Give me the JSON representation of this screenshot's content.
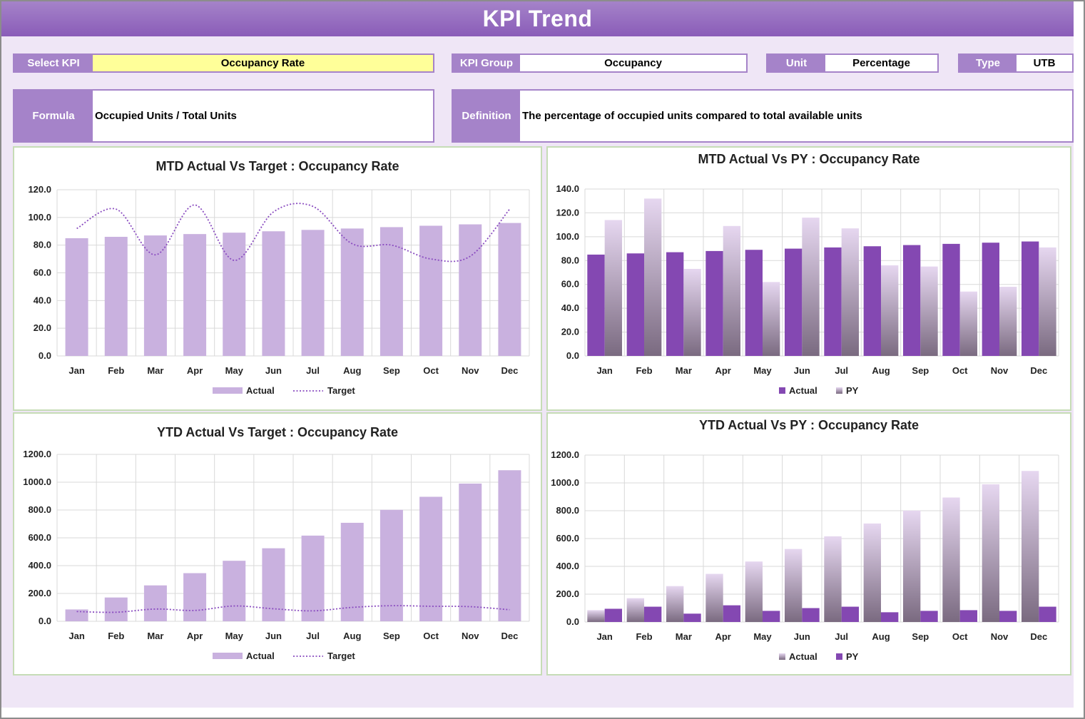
{
  "page": {
    "title": "KPI Trend"
  },
  "selectors": {
    "select_kpi": {
      "label": "Select KPI",
      "value": "Occupancy Rate"
    },
    "kpi_group": {
      "label": "KPI Group",
      "value": "Occupancy"
    },
    "unit": {
      "label": "Unit",
      "value": "Percentage"
    },
    "type": {
      "label": "Type",
      "value": "UTB"
    },
    "formula": {
      "label": "Formula",
      "value": "Occupied Units / Total Units"
    },
    "definition": {
      "label": "Definition",
      "value": "The percentage of occupied units compared to total available units"
    }
  },
  "colors": {
    "header": "#8a5cb8",
    "label_bg": "#a583c9",
    "select_bg": "#ffff99",
    "canvas_bg": "#efe6f6",
    "actual_light": "#c9b1df",
    "target_line": "#8a4cc0",
    "actual_dark": "#8448b2",
    "py_gradient_top": "#e6d7f0",
    "py_gradient_bottom": "#7a6a80",
    "panel_border": "#c6dcb6",
    "grid": "#d9d9d9"
  },
  "chart_data": [
    {
      "id": "mtd_target",
      "type": "bar",
      "title": "MTD Actual Vs Target : Occupancy Rate",
      "categories": [
        "Jan",
        "Feb",
        "Mar",
        "Apr",
        "May",
        "Jun",
        "Jul",
        "Aug",
        "Sep",
        "Oct",
        "Nov",
        "Dec"
      ],
      "series": [
        {
          "name": "Actual",
          "kind": "bar",
          "values": [
            85,
            86,
            87,
            88,
            89,
            90,
            91,
            92,
            93,
            94,
            95,
            96
          ]
        },
        {
          "name": "Target",
          "kind": "line",
          "values": [
            92,
            106,
            73,
            109,
            69,
            104,
            108,
            81,
            80,
            70,
            72,
            106
          ]
        }
      ],
      "ylim": [
        0,
        120
      ],
      "yticks": [
        "0.0",
        "20.0",
        "40.0",
        "60.0",
        "80.0",
        "100.0",
        "120.0"
      ],
      "grid": true,
      "legend": "bottom"
    },
    {
      "id": "mtd_py",
      "type": "bar",
      "title": "MTD Actual Vs PY : Occupancy Rate",
      "categories": [
        "Jan",
        "Feb",
        "Mar",
        "Apr",
        "May",
        "Jun",
        "Jul",
        "Aug",
        "Sep",
        "Oct",
        "Nov",
        "Dec"
      ],
      "series": [
        {
          "name": "Actual",
          "kind": "bar",
          "values": [
            85,
            86,
            87,
            88,
            89,
            90,
            91,
            92,
            93,
            94,
            95,
            96
          ]
        },
        {
          "name": "PY",
          "kind": "bar",
          "values": [
            114,
            132,
            73,
            109,
            62,
            116,
            107,
            76,
            75,
            54,
            58,
            91
          ]
        }
      ],
      "ylim": [
        0,
        140
      ],
      "yticks": [
        "0.0",
        "20.0",
        "40.0",
        "60.0",
        "80.0",
        "100.0",
        "120.0",
        "140.0"
      ],
      "grid": true,
      "legend": "bottom"
    },
    {
      "id": "ytd_target",
      "type": "bar",
      "title": "YTD Actual Vs Target : Occupancy Rate",
      "categories": [
        "Jan",
        "Feb",
        "Mar",
        "Apr",
        "May",
        "Jun",
        "Jul",
        "Aug",
        "Sep",
        "Oct",
        "Nov",
        "Dec"
      ],
      "series": [
        {
          "name": "Actual",
          "kind": "bar",
          "values": [
            85,
            171,
            258,
            346,
            435,
            525,
            616,
            708,
            801,
            895,
            990,
            1086
          ]
        },
        {
          "name": "Target",
          "kind": "line",
          "values": [
            70,
            65,
            88,
            78,
            110,
            90,
            75,
            100,
            112,
            108,
            105,
            83
          ]
        }
      ],
      "ylim": [
        0,
        1200
      ],
      "yticks": [
        "0.0",
        "200.0",
        "400.0",
        "600.0",
        "800.0",
        "1000.0",
        "1200.0"
      ],
      "grid": true,
      "legend": "bottom"
    },
    {
      "id": "ytd_py",
      "type": "bar",
      "title": "YTD Actual Vs PY : Occupancy Rate",
      "categories": [
        "Jan",
        "Feb",
        "Mar",
        "Apr",
        "May",
        "Jun",
        "Jul",
        "Aug",
        "Sep",
        "Oct",
        "Nov",
        "Dec"
      ],
      "series": [
        {
          "name": "Actual",
          "kind": "bar",
          "values": [
            85,
            171,
            258,
            346,
            435,
            525,
            616,
            708,
            801,
            895,
            990,
            1086
          ]
        },
        {
          "name": "PY",
          "kind": "bar",
          "values": [
            95,
            110,
            60,
            120,
            80,
            100,
            110,
            70,
            80,
            85,
            80,
            110
          ]
        }
      ],
      "ylim": [
        0,
        1200
      ],
      "yticks": [
        "0.0",
        "200.0",
        "400.0",
        "600.0",
        "800.0",
        "1000.0",
        "1200.0"
      ],
      "grid": true,
      "legend": "bottom"
    }
  ]
}
